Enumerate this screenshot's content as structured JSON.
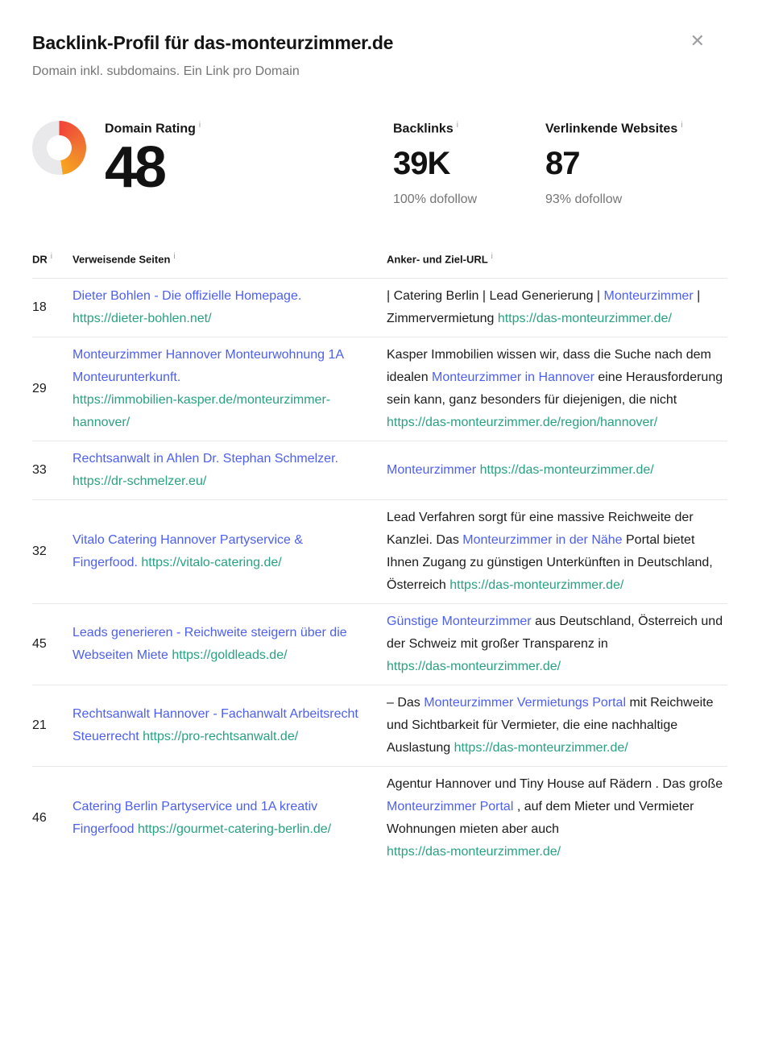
{
  "modal": {
    "title": "Backlink-Profil für das-monteurzimmer.de",
    "subtitle": "Domain inkl. subdomains. Ein Link pro Domain",
    "close_icon": "✕"
  },
  "icons": {
    "info": "i"
  },
  "colors": {
    "link_blue": "#4c5ff1",
    "url_green": "#28a183",
    "text_dark": "#1b1b1b",
    "text_gray": "#757575",
    "icon_gray": "#9a9a9a",
    "border": "#e8e8e9",
    "gauge_track": "#e9e9eb",
    "gauge_start": "#f2423a",
    "gauge_mid": "#ef7c30",
    "gauge_end": "#f8a41f"
  },
  "stats": {
    "domain_rating": {
      "label": "Domain Rating",
      "value": "48",
      "percent": 48
    },
    "backlinks": {
      "label": "Backlinks",
      "value": "39K",
      "sub": "100% dofollow"
    },
    "ref_websites": {
      "label": "Verlinkende Websites",
      "value": "87",
      "sub": "93% dofollow"
    }
  },
  "table": {
    "headers": {
      "dr": "DR",
      "pages": "Verweisende Seiten",
      "anchor": "Anker- und Ziel-URL"
    },
    "rows": [
      {
        "dr": "18",
        "title": "Dieter Bohlen - Die offizielle Homepage.",
        "url": "https://dieter-bohlen.net/",
        "anchor_parts": [
          {
            "type": "plain",
            "text": "| Catering Berlin | Lead Generierung | "
          },
          {
            "type": "link",
            "text": "Monteurzimmer"
          },
          {
            "type": "plain",
            "text": " | Zimmervermietung"
          }
        ],
        "target_url": "https://das-monteurzimmer.de/"
      },
      {
        "dr": "29",
        "title": "Monteurzimmer Hannover Monteurwohnung 1A Monteurunterkunft.",
        "url": "https://immobilien-kasper.de/monteurzimmer-hannover/",
        "anchor_parts": [
          {
            "type": "plain",
            "text": "Kasper Immobilien wissen wir, dass die Suche nach dem idealen "
          },
          {
            "type": "link",
            "text": "Monteurzimmer in Hannover"
          },
          {
            "type": "plain",
            "text": " eine Herausforderung sein kann, ganz besonders für diejenigen, die nicht"
          }
        ],
        "target_url": "https://das-monteurzimmer.de/region/hannover/"
      },
      {
        "dr": "33",
        "title": "Rechtsanwalt in Ahlen Dr. Stephan Schmelzer.",
        "url": "https://dr-schmelzer.eu/",
        "anchor_parts": [
          {
            "type": "link",
            "text": "Monteurzimmer"
          }
        ],
        "target_url": "https://das-monteurzimmer.de/"
      },
      {
        "dr": "32",
        "title": "Vitalo Catering Hannover Partyservice & Fingerfood.",
        "url": "https://vitalo-catering.de/",
        "anchor_parts": [
          {
            "type": "plain",
            "text": "Lead Verfahren sorgt für eine massive Reichweite der Kanzlei. Das "
          },
          {
            "type": "link",
            "text": "Monteurzimmer in der Nähe"
          },
          {
            "type": "plain",
            "text": " Portal bietet Ihnen Zugang zu günstigen Unterkünften in Deutschland, Österreich"
          }
        ],
        "target_url": "https://das-monteurzimmer.de/"
      },
      {
        "dr": "45",
        "title": "Leads generieren - Reichweite steigern über die Webseiten Miete",
        "url": "https://goldleads.de/",
        "anchor_parts": [
          {
            "type": "link",
            "text": "Günstige Monteurzimmer"
          },
          {
            "type": "plain",
            "text": " aus Deutschland, Österreich und der Schweiz mit großer Transparenz in"
          }
        ],
        "target_url": "https://das-monteurzimmer.de/"
      },
      {
        "dr": "21",
        "title": "Rechtsanwalt Hannover - Fachanwalt Arbeitsrecht Steuerrecht",
        "url": "https://pro-rechtsanwalt.de/",
        "anchor_parts": [
          {
            "type": "plain",
            "text": "– Das "
          },
          {
            "type": "link",
            "text": "Monteurzimmer Vermietungs Portal"
          },
          {
            "type": "plain",
            "text": " mit Reichweite und Sichtbarkeit für Vermieter, die eine nachhaltige Auslastung"
          }
        ],
        "target_url": "https://das-monteurzimmer.de/"
      },
      {
        "dr": "46",
        "title": "Catering Berlin Partyservice und 1A kreativ Fingerfood",
        "url": "https://gourmet-catering-berlin.de/",
        "anchor_parts": [
          {
            "type": "plain",
            "text": "Agentur Hannover und Tiny House auf Rädern . Das große "
          },
          {
            "type": "link",
            "text": "Monteurzimmer Portal"
          },
          {
            "type": "plain",
            "text": " , auf dem Mieter und Vermieter Wohnungen mieten aber auch"
          }
        ],
        "target_url": "https://das-monteurzimmer.de/"
      }
    ]
  }
}
